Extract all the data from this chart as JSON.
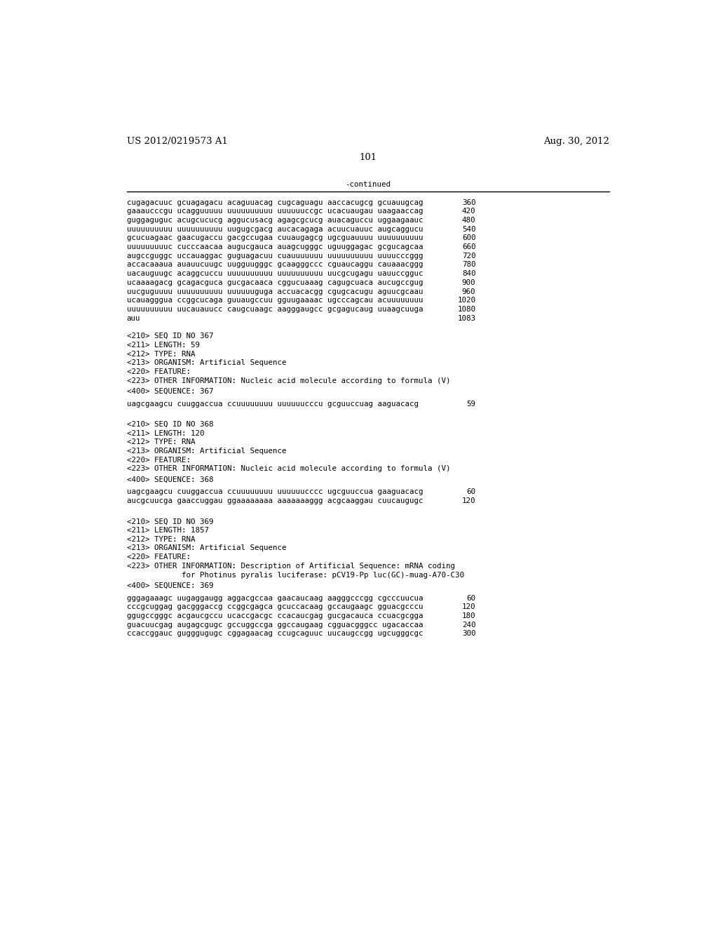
{
  "header_left": "US 2012/0219573 A1",
  "header_right": "Aug. 30, 2012",
  "page_number": "101",
  "continued_label": "-continued",
  "background_color": "#ffffff",
  "text_color": "#000000",
  "font_size_header": 9.5,
  "font_size_body": 7.8,
  "font_size_page": 9.5,
  "sequence_lines": [
    [
      "cugagacuuc gcuagagacu acaguuacag cugcaguagu aaccacugcg gcuauugcag",
      "360"
    ],
    [
      "gaaaucccgu ucagguuuuu uuuuuuuuuu uuuuuuccgc ucacuaugau uaagaaccag",
      "420"
    ],
    [
      "guggaguguc acugcucucg aggucusacg agagcgcucg auacaguccu uggaagaauc",
      "480"
    ],
    [
      "uuuuuuuuuu uuuuuuuuuu uugugcgacg aucacagaga acuucuauuc augcaggucu",
      "540"
    ],
    [
      "gcucuagaac gaacugaccu gacgccugaa cuuaugagcg ugcguauuuu uuuuuuuuuu",
      "600"
    ],
    [
      "uuuuuuuuuc cucccaacaa augucgauca auagcugggc uguuggagac gcgucagcaa",
      "660"
    ],
    [
      "augccguggc uccauaggac guguagacuu cuauuuuuuu uuuuuuuuuu uuuucccggg",
      "720"
    ],
    [
      "accacaaaua auauucuugc uugguugggc gcaagggccc cguaucaggu cauaaacggg",
      "780"
    ],
    [
      "uacauguugc acaggcuccu uuuuuuuuuu uuuuuuuuuu uucgcugagu uauuccgguc",
      "840"
    ],
    [
      "ucaaaagacg gcagacguca gucgacaaca cggucuaaag cagugcuaca aucugccgug",
      "900"
    ],
    [
      "uucguguuuu uuuuuuuuuu uuuuuuguga accuacacgg cgugcacugu aguucgcaau",
      "960"
    ],
    [
      "ucauagggua ccggcucaga guuaugccuu gguugaaaac ugcccagcau acuuuuuuuu",
      "1020"
    ],
    [
      "uuuuuuuuuu uucauauucc caugcuaagc aagggaugcc gcgagucaug uuaagcuuga",
      "1080"
    ],
    [
      "auu",
      "1083"
    ]
  ],
  "seq_blocks": [
    {
      "id_lines": [
        "<210> SEQ ID NO 367",
        "<211> LENGTH: 59",
        "<212> TYPE: RNA",
        "<213> ORGANISM: Artificial Sequence",
        "<220> FEATURE:",
        "<223> OTHER INFORMATION: Nucleic acid molecule according to formula (V)"
      ],
      "seq_label": "<400> SEQUENCE: 367",
      "seq_lines": [
        [
          "uagcgaagcu cuuggaccua ccuuuuuuuu uuuuuucccu gcguuccuag aaguacacg",
          "59"
        ]
      ]
    },
    {
      "id_lines": [
        "<210> SEQ ID NO 368",
        "<211> LENGTH: 120",
        "<212> TYPE: RNA",
        "<213> ORGANISM: Artificial Sequence",
        "<220> FEATURE:",
        "<223> OTHER INFORMATION: Nucleic acid molecule according to formula (V)"
      ],
      "seq_label": "<400> SEQUENCE: 368",
      "seq_lines": [
        [
          "uagcgaagcu cuuggaccua ccuuuuuuuu uuuuuucccc ugcguuccua gaaguacacg",
          "60"
        ],
        [
          "aucgcuucga gaaccuggau ggaaaaaaaa aaaaaaaggg acgcaaggau cuucaugugc",
          "120"
        ]
      ]
    },
    {
      "id_lines": [
        "<210> SEQ ID NO 369",
        "<211> LENGTH: 1857",
        "<212> TYPE: RNA",
        "<213> ORGANISM: Artificial Sequence",
        "<220> FEATURE:",
        "<223> OTHER INFORMATION: Description of Artificial Sequence: mRNA coding",
        "            for Photinus pyralis luciferase: pCV19-Pp luc(GC)-muag-A70-C30"
      ],
      "seq_label": "<400> SEQUENCE: 369",
      "seq_lines": [
        [
          "gggagaaagc uugaggaugg aggacgccaa gaacaucaag aagggcccgg cgcccuucua",
          "60"
        ],
        [
          "cccgcuggag gacgggaccg ccggcgagca gcuccacaag gccaugaagc gguacgcccu",
          "120"
        ],
        [
          "ggugccgggc acgaucgccu ucaccgacgc ccacaucgag gucgacauca ccuacgcgga",
          "180"
        ],
        [
          "guacuucgag augagcgugc gccuggccga ggccaugaag cgguacgggcc ugacaccaa",
          "240"
        ],
        [
          "ccaccggauc gugggugugc cggagaacag ccugcaguuc uucaugccgg ugcugggcgc",
          "300"
        ]
      ]
    }
  ]
}
